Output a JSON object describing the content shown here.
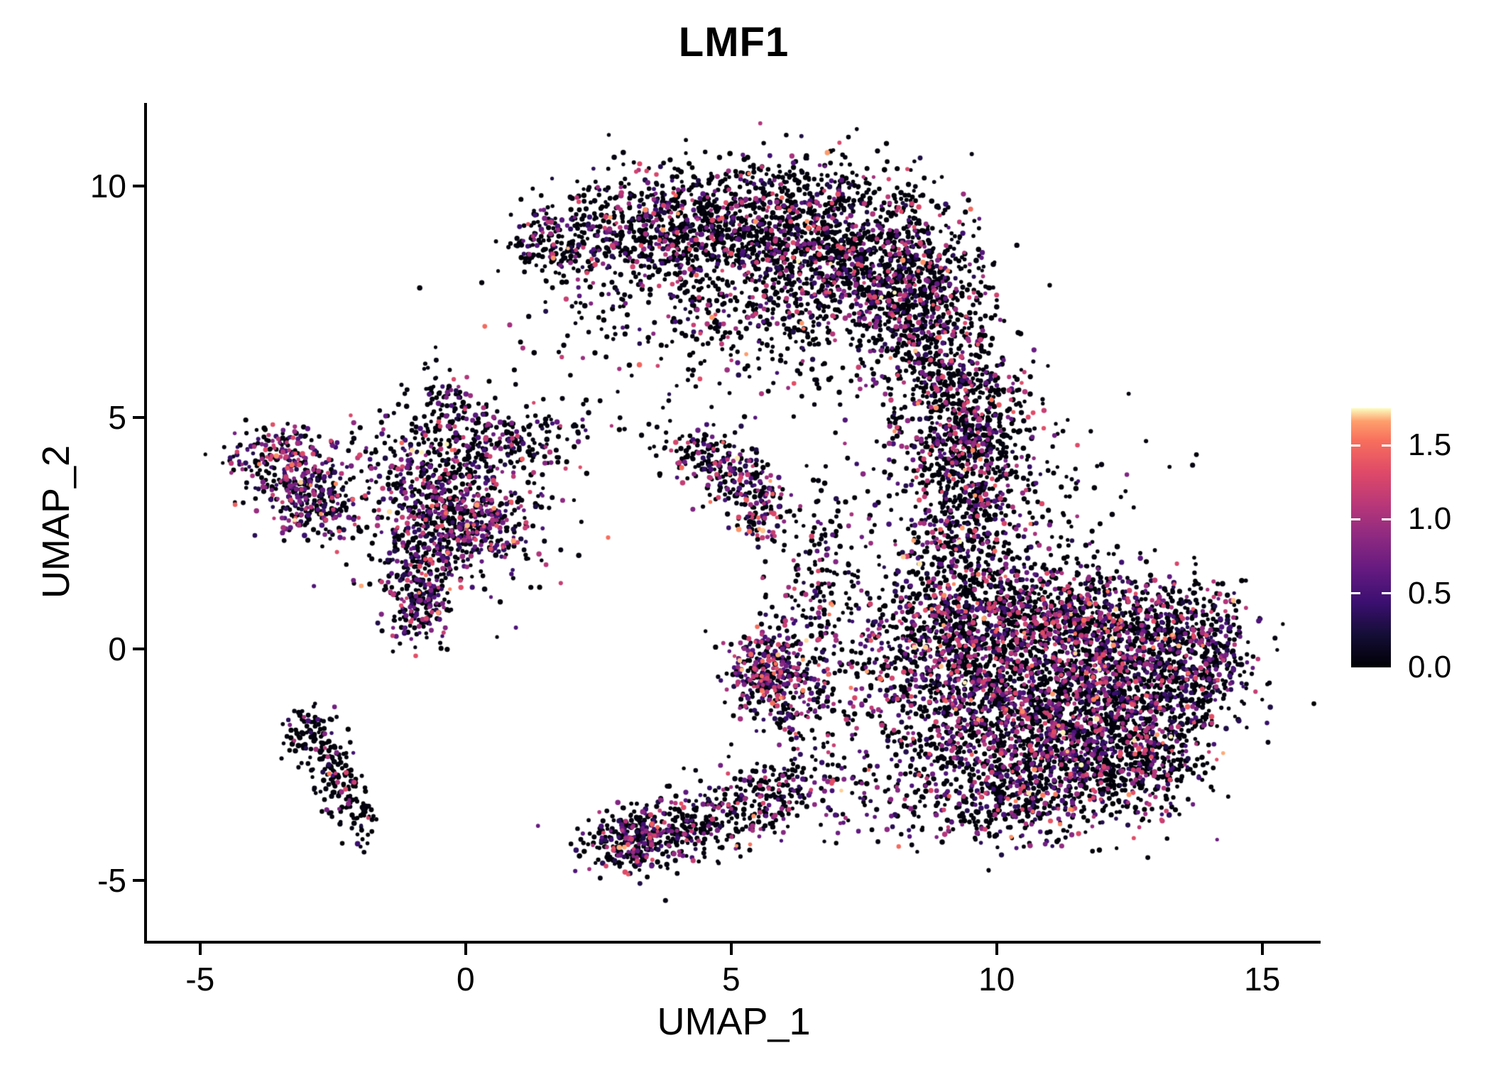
{
  "title": "LMF1",
  "axes": {
    "x": {
      "label": "UMAP_1",
      "tick_labels": [
        "-5",
        "0",
        "5",
        "10",
        "15"
      ],
      "tick_values": [
        -5,
        0,
        5,
        10,
        15
      ]
    },
    "y": {
      "label": "UMAP_2",
      "tick_labels": [
        "-5",
        "0",
        "5",
        "10"
      ],
      "tick_values": [
        -5,
        0,
        5,
        10
      ]
    }
  },
  "colorbar": {
    "tick_labels": [
      "0.0",
      "0.5",
      "1.0",
      "1.5"
    ],
    "tick_values": [
      0,
      0.5,
      1,
      1.5
    ],
    "vmin": 0,
    "vmax": 1.75,
    "colormap": "magma",
    "stops": [
      [
        0,
        "#000004"
      ],
      [
        0.125,
        "#140e36"
      ],
      [
        0.25,
        "#3b0f70"
      ],
      [
        0.375,
        "#641a80"
      ],
      [
        0.5,
        "#8c2981"
      ],
      [
        0.625,
        "#b73779"
      ],
      [
        0.75,
        "#de4968"
      ],
      [
        0.875,
        "#f76f5c"
      ],
      [
        0.95,
        "#fe9f6d"
      ],
      [
        1,
        "#fcfdbf"
      ]
    ]
  },
  "chart_data": {
    "type": "scatter",
    "title": "LMF1",
    "xlabel": "UMAP_1",
    "ylabel": "UMAP_2",
    "xlim": [
      -6.0,
      16.1
    ],
    "ylim": [
      -6.3,
      11.8
    ],
    "grid": false,
    "legend_position": "right",
    "color_value_range": [
      0,
      1.75
    ],
    "point_radius_px": 3.2,
    "seed": 42,
    "cluster_fields": [
      "cx",
      "cy",
      "sx",
      "sy",
      "n",
      "p_colored",
      "p_hot"
    ],
    "clusters": [
      [
        1.6,
        8.8,
        0.45,
        0.35,
        130,
        0.28,
        0.05
      ],
      [
        2.8,
        9.0,
        0.8,
        0.5,
        260,
        0.28,
        0.05
      ],
      [
        4.2,
        9.2,
        0.9,
        0.65,
        430,
        0.28,
        0.05
      ],
      [
        5.6,
        9.0,
        1.0,
        0.75,
        620,
        0.28,
        0.05
      ],
      [
        7.0,
        8.6,
        1.0,
        0.9,
        720,
        0.28,
        0.05
      ],
      [
        8.2,
        8.0,
        0.8,
        1.0,
        620,
        0.28,
        0.05
      ],
      [
        8.8,
        6.8,
        0.6,
        0.9,
        360,
        0.28,
        0.05
      ],
      [
        9.2,
        5.4,
        0.5,
        0.8,
        220,
        0.3,
        0.05
      ],
      [
        9.4,
        4.0,
        0.5,
        0.8,
        170,
        0.3,
        0.05
      ],
      [
        3.5,
        7.8,
        1.2,
        0.8,
        130,
        0.25,
        0.05
      ],
      [
        5.8,
        6.9,
        1.3,
        0.8,
        170,
        0.25,
        0.05
      ],
      [
        5.5,
        10.2,
        1.4,
        0.35,
        18,
        0.25,
        0.05
      ],
      [
        -3.6,
        4.25,
        0.45,
        0.3,
        140,
        0.45,
        0.06
      ],
      [
        -3.15,
        3.55,
        0.5,
        0.42,
        210,
        0.45,
        0.06
      ],
      [
        -2.7,
        2.95,
        0.4,
        0.33,
        140,
        0.45,
        0.06
      ],
      [
        -0.35,
        4.45,
        0.85,
        0.45,
        190,
        0.38,
        0.06
      ],
      [
        0.9,
        4.5,
        0.65,
        0.3,
        110,
        0.3,
        0.05
      ],
      [
        -0.6,
        3.4,
        0.6,
        0.5,
        270,
        0.45,
        0.07
      ],
      [
        0.3,
        2.7,
        0.5,
        0.45,
        230,
        0.5,
        0.07
      ],
      [
        -0.75,
        2.2,
        0.5,
        0.5,
        180,
        0.4,
        0.06
      ],
      [
        -0.9,
        1.1,
        0.35,
        0.5,
        210,
        0.5,
        0.08
      ],
      [
        -0.3,
        5.4,
        0.3,
        0.45,
        70,
        0.3,
        0.05
      ],
      [
        0.1,
        3.1,
        1.3,
        1.2,
        150,
        0.25,
        0.05
      ],
      [
        4.4,
        4.2,
        0.38,
        0.3,
        90,
        0.4,
        0.07
      ],
      [
        5.0,
        3.9,
        0.35,
        0.33,
        110,
        0.45,
        0.08
      ],
      [
        5.55,
        3.0,
        0.26,
        0.45,
        120,
        0.55,
        0.1
      ],
      [
        -2.95,
        -1.85,
        0.26,
        0.33,
        80,
        0.12,
        0.03
      ],
      [
        -2.6,
        -2.5,
        0.24,
        0.3,
        70,
        0.12,
        0.03
      ],
      [
        -2.25,
        -3.1,
        0.22,
        0.33,
        60,
        0.12,
        0.03
      ],
      [
        -2.0,
        -3.75,
        0.16,
        0.25,
        35,
        0.12,
        0.03
      ],
      [
        3.1,
        -4.15,
        0.45,
        0.33,
        270,
        0.4,
        0.07
      ],
      [
        4.0,
        -3.9,
        0.6,
        0.33,
        180,
        0.35,
        0.06
      ],
      [
        5.0,
        -3.45,
        0.65,
        0.38,
        160,
        0.35,
        0.06
      ],
      [
        6.0,
        -2.95,
        0.6,
        0.4,
        150,
        0.35,
        0.06
      ],
      [
        5.6,
        -0.45,
        0.35,
        0.45,
        270,
        0.55,
        0.1
      ],
      [
        6.3,
        -1.05,
        0.5,
        0.55,
        170,
        0.4,
        0.06
      ],
      [
        6.6,
        0.7,
        0.45,
        0.9,
        130,
        0.35,
        0.05
      ],
      [
        6.9,
        2.2,
        0.5,
        0.8,
        90,
        0.3,
        0.05
      ],
      [
        9.0,
        -0.5,
        0.8,
        1.0,
        520,
        0.38,
        0.05
      ],
      [
        10.3,
        -0.8,
        1.0,
        1.15,
        900,
        0.38,
        0.05
      ],
      [
        11.7,
        -1.0,
        1.0,
        1.15,
        980,
        0.38,
        0.05
      ],
      [
        13.0,
        -0.6,
        0.8,
        0.95,
        600,
        0.38,
        0.05
      ],
      [
        13.9,
        0.0,
        0.45,
        0.7,
        260,
        0.35,
        0.04
      ],
      [
        11.0,
        -2.6,
        1.15,
        0.7,
        500,
        0.38,
        0.05
      ],
      [
        12.5,
        -2.4,
        0.8,
        0.55,
        300,
        0.36,
        0.05
      ],
      [
        10.2,
        -3.4,
        0.8,
        0.5,
        230,
        0.3,
        0.04
      ],
      [
        9.0,
        1.2,
        0.7,
        0.8,
        310,
        0.38,
        0.05
      ],
      [
        10.5,
        0.8,
        1.0,
        0.6,
        360,
        0.38,
        0.05
      ],
      [
        12.3,
        0.6,
        0.9,
        0.5,
        290,
        0.38,
        0.05
      ],
      [
        9.3,
        2.6,
        0.5,
        0.7,
        200,
        0.35,
        0.05
      ],
      [
        9.6,
        4.0,
        0.6,
        0.8,
        220,
        0.35,
        0.05
      ],
      [
        9.8,
        5.3,
        0.5,
        0.7,
        150,
        0.35,
        0.05
      ],
      [
        10.8,
        3.0,
        1.0,
        1.1,
        140,
        0.3,
        0.04
      ],
      [
        8.3,
        4.6,
        0.7,
        1.0,
        90,
        0.3,
        0.04
      ],
      [
        2.0,
        6.4,
        1.4,
        0.9,
        40,
        0.25,
        0.04
      ],
      [
        4.1,
        5.8,
        1.4,
        0.9,
        30,
        0.25,
        0.04
      ],
      [
        7.8,
        -0.4,
        0.6,
        0.8,
        70,
        0.35,
        0.05
      ],
      [
        8.0,
        -3.0,
        0.7,
        0.55,
        90,
        0.35,
        0.05
      ]
    ]
  }
}
